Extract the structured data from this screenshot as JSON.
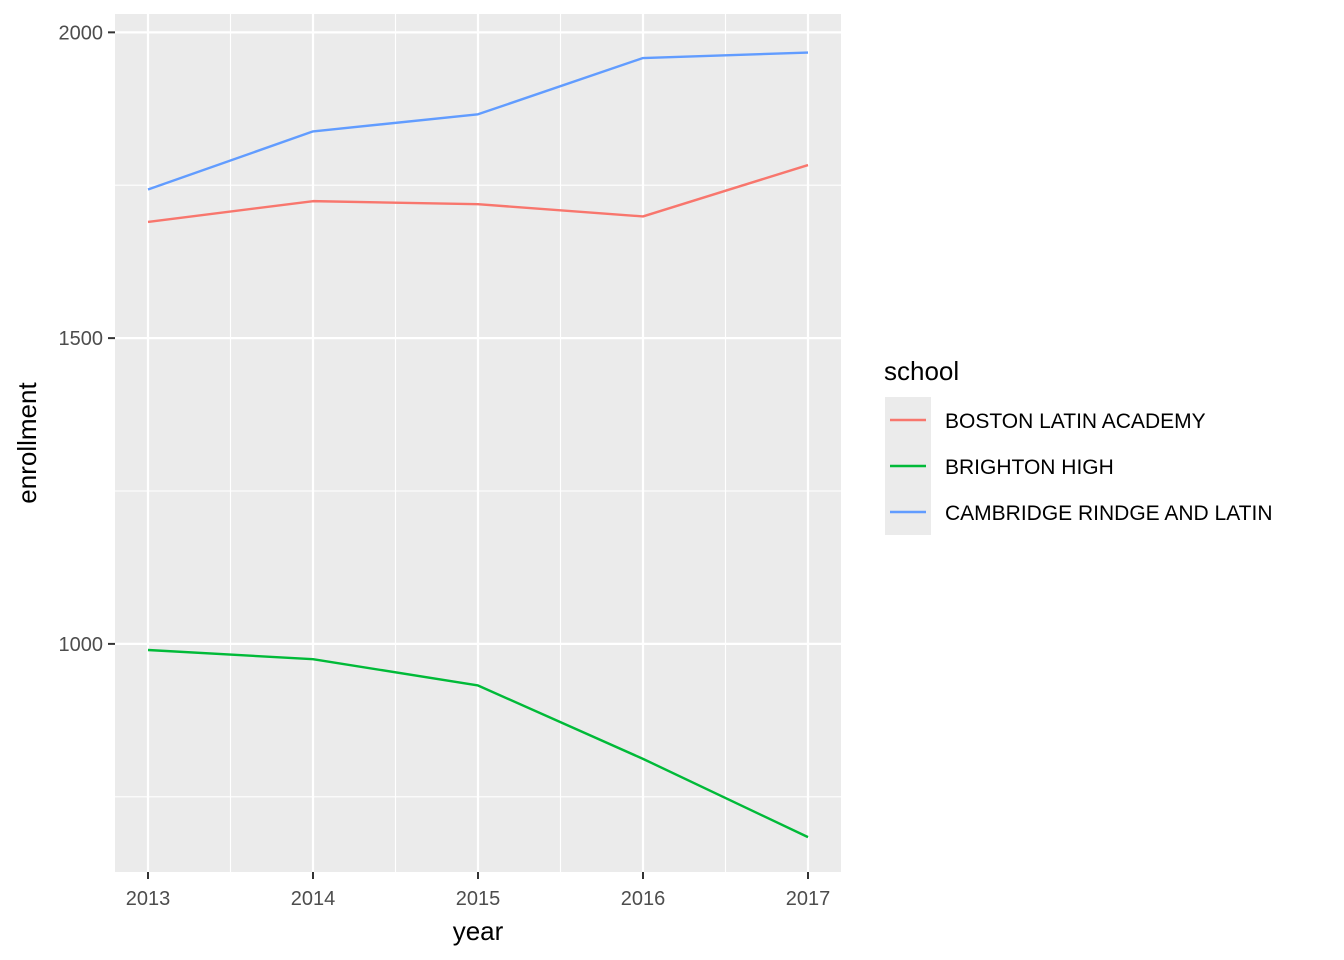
{
  "chart_data": {
    "type": "line",
    "title": "",
    "xlabel": "year",
    "ylabel": "enrollment",
    "x": [
      2013,
      2014,
      2015,
      2016,
      2017
    ],
    "x_ticks": [
      "2013",
      "2014",
      "2015",
      "2016",
      "2017"
    ],
    "y_ticks": [
      "1000",
      "1500",
      "2000"
    ],
    "xlim": [
      2012.8,
      2017.2
    ],
    "ylim": [
      627,
      2030
    ],
    "grid": true,
    "legend": {
      "title": "school",
      "placement": "right"
    },
    "series": [
      {
        "name": "BOSTON LATIN ACADEMY",
        "color": "#F8766D",
        "values": [
          1690,
          1724,
          1719,
          1699,
          1783
        ]
      },
      {
        "name": "BRIGHTON HIGH",
        "color": "#00BA38",
        "values": [
          990,
          975,
          932,
          812,
          684
        ]
      },
      {
        "name": "CAMBRIDGE RINDGE AND LATIN",
        "color": "#619CFF",
        "values": [
          1743,
          1838,
          1866,
          1958,
          1967
        ]
      }
    ]
  }
}
